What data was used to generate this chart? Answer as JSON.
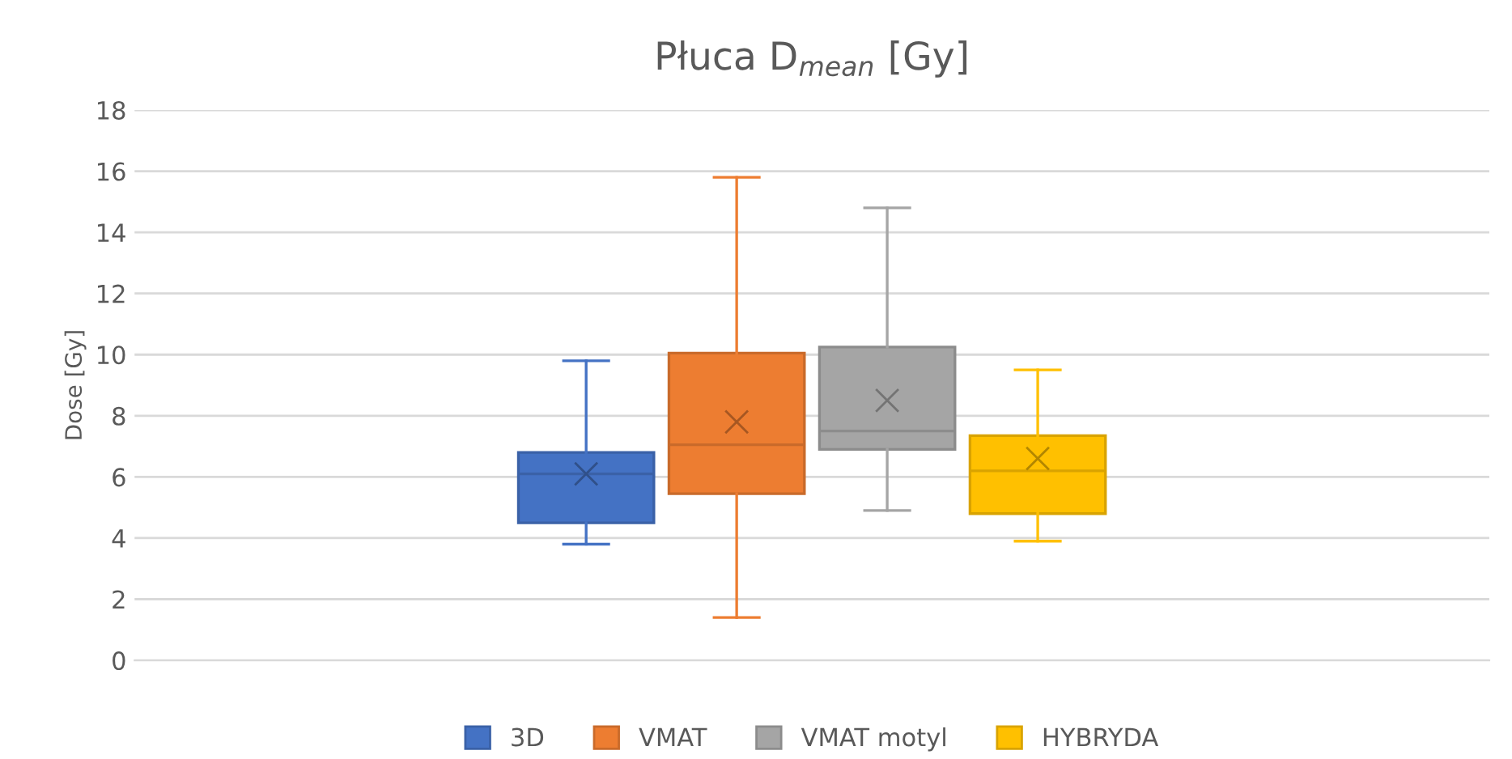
{
  "chart_data": {
    "type": "box",
    "title": "Płuca D$_{mean}$ [Gy]",
    "ylabel": "Dose [Gy]",
    "categories": [
      null
    ],
    "ylim": [
      0,
      18
    ],
    "yticks": [
      0,
      2,
      4,
      6,
      8,
      10,
      12,
      14,
      16,
      18
    ],
    "grid": "y",
    "legend": "bottom",
    "tick_labels": "y",
    "marker": "cross",
    "series": [
      {
        "name": "3D",
        "color": "#4472c4",
        "boxes": [
          {
            "low": 3.8,
            "q1": 4.5,
            "median": 6.1,
            "q3": 6.8,
            "high": 9.8,
            "mean": 6.1
          }
        ]
      },
      {
        "name": "VMAT",
        "color": "#ed7d31",
        "boxes": [
          {
            "low": 1.4,
            "q1": 5.45,
            "median": 7.05,
            "q3": 10.05,
            "high": 15.8,
            "mean": 7.8
          }
        ]
      },
      {
        "name": "VMAT motyl",
        "color": "#a5a5a5",
        "boxes": [
          {
            "low": 4.9,
            "q1": 6.9,
            "median": 7.5,
            "q3": 10.25,
            "high": 14.8,
            "mean": 8.5
          }
        ]
      },
      {
        "name": "HYBRYDA",
        "color": "#ffc000",
        "boxes": [
          {
            "low": 3.9,
            "q1": 4.8,
            "median": 6.2,
            "q3": 7.35,
            "high": 9.5,
            "mean": 6.6
          }
        ]
      }
    ]
  }
}
